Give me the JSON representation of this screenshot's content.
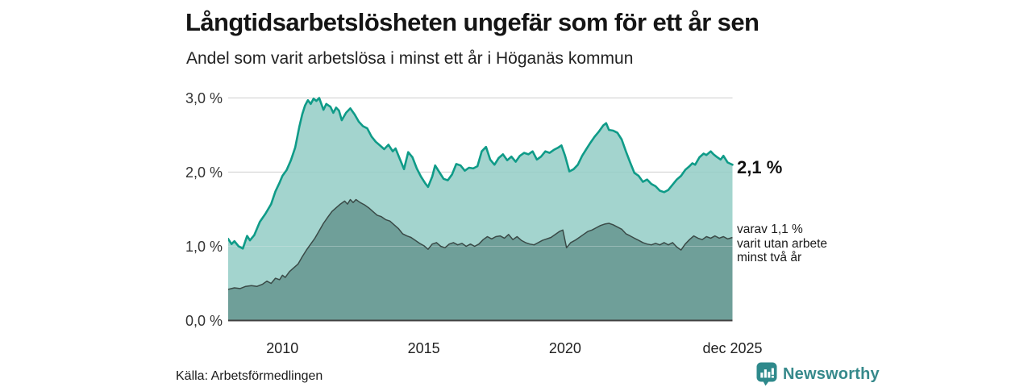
{
  "header": {
    "title": "Långtidsarbetslösheten ungefär som för ett år sen",
    "subtitle": "Andel som varit arbetslösa i minst ett år i Höganäs kommun"
  },
  "footer": {
    "source": "Källa: Arbetsförmedlingen",
    "brand": "Newsworthy"
  },
  "colors": {
    "accent_line": "#0f9b88",
    "accent_fill": "#93cdc5",
    "dark_line": "#3a4a47",
    "dark_fill": "#6f9f99",
    "grid": "#d6d6d6",
    "axis": "#3f3f3f",
    "brand_teal": "#2e898b",
    "text": "#1b1b1b"
  },
  "chart_data": {
    "type": "area",
    "title": "Långtidsarbetslösheten ungefär som för ett år sen",
    "subtitle": "Andel som varit arbetslösa i minst ett år i Höganäs kommun",
    "xlabel": "",
    "ylabel": "",
    "ylim": [
      0,
      3.0
    ],
    "xlim": [
      2008.08,
      2025.92
    ],
    "grid": "horizontal",
    "legend": "none",
    "end_label": "2,1 %",
    "annotation": {
      "lines": [
        "varav 1,1 %",
        "varit utan arbete",
        "minst två år"
      ]
    },
    "yticks": [
      {
        "label": "3,0 %",
        "value": 3
      },
      {
        "label": "2,0 %",
        "value": 2
      },
      {
        "label": "1,0 %",
        "value": 1
      },
      {
        "label": "0,0 %",
        "value": 0
      }
    ],
    "xticks": [
      {
        "label": "2010",
        "year": 2010
      },
      {
        "label": "2015",
        "year": 2015
      },
      {
        "label": "2020",
        "year": 2020
      },
      {
        "label": "dec 2025",
        "year": 2025.92
      }
    ],
    "series": [
      {
        "name": "Arbetslösa minst ett år (%)",
        "role": "upper",
        "last_value": 2.1,
        "points": [
          [
            2008.08,
            1.1
          ],
          [
            2008.2,
            1.03
          ],
          [
            2008.3,
            1.07
          ],
          [
            2008.45,
            1.0
          ],
          [
            2008.6,
            0.97
          ],
          [
            2008.75,
            1.14
          ],
          [
            2008.85,
            1.08
          ],
          [
            2009.0,
            1.15
          ],
          [
            2009.2,
            1.33
          ],
          [
            2009.4,
            1.44
          ],
          [
            2009.6,
            1.57
          ],
          [
            2009.75,
            1.74
          ],
          [
            2009.9,
            1.86
          ],
          [
            2010.0,
            1.95
          ],
          [
            2010.15,
            2.03
          ],
          [
            2010.3,
            2.16
          ],
          [
            2010.45,
            2.33
          ],
          [
            2010.6,
            2.62
          ],
          [
            2010.7,
            2.78
          ],
          [
            2010.8,
            2.9
          ],
          [
            2010.9,
            2.97
          ],
          [
            2011.0,
            2.92
          ],
          [
            2011.1,
            2.99
          ],
          [
            2011.2,
            2.96
          ],
          [
            2011.3,
            3.0
          ],
          [
            2011.45,
            2.84
          ],
          [
            2011.55,
            2.92
          ],
          [
            2011.7,
            2.88
          ],
          [
            2011.8,
            2.8
          ],
          [
            2011.9,
            2.87
          ],
          [
            2012.0,
            2.83
          ],
          [
            2012.1,
            2.7
          ],
          [
            2012.25,
            2.8
          ],
          [
            2012.4,
            2.86
          ],
          [
            2012.55,
            2.78
          ],
          [
            2012.7,
            2.68
          ],
          [
            2012.85,
            2.62
          ],
          [
            2013.0,
            2.59
          ],
          [
            2013.15,
            2.48
          ],
          [
            2013.3,
            2.41
          ],
          [
            2013.45,
            2.36
          ],
          [
            2013.6,
            2.31
          ],
          [
            2013.75,
            2.37
          ],
          [
            2013.9,
            2.28
          ],
          [
            2014.0,
            2.32
          ],
          [
            2014.15,
            2.18
          ],
          [
            2014.3,
            2.04
          ],
          [
            2014.45,
            2.27
          ],
          [
            2014.6,
            2.2
          ],
          [
            2014.75,
            2.05
          ],
          [
            2014.9,
            1.94
          ],
          [
            2015.05,
            1.85
          ],
          [
            2015.15,
            1.8
          ],
          [
            2015.3,
            1.94
          ],
          [
            2015.4,
            2.09
          ],
          [
            2015.55,
            2.0
          ],
          [
            2015.7,
            1.91
          ],
          [
            2015.85,
            1.89
          ],
          [
            2016.0,
            1.97
          ],
          [
            2016.15,
            2.11
          ],
          [
            2016.3,
            2.09
          ],
          [
            2016.45,
            2.02
          ],
          [
            2016.6,
            2.06
          ],
          [
            2016.75,
            2.05
          ],
          [
            2016.9,
            2.08
          ],
          [
            2017.05,
            2.28
          ],
          [
            2017.2,
            2.34
          ],
          [
            2017.35,
            2.17
          ],
          [
            2017.5,
            2.1
          ],
          [
            2017.65,
            2.19
          ],
          [
            2017.8,
            2.24
          ],
          [
            2017.95,
            2.16
          ],
          [
            2018.1,
            2.21
          ],
          [
            2018.25,
            2.14
          ],
          [
            2018.4,
            2.22
          ],
          [
            2018.55,
            2.26
          ],
          [
            2018.7,
            2.24
          ],
          [
            2018.85,
            2.28
          ],
          [
            2019.0,
            2.17
          ],
          [
            2019.15,
            2.21
          ],
          [
            2019.3,
            2.28
          ],
          [
            2019.45,
            2.26
          ],
          [
            2019.6,
            2.3
          ],
          [
            2019.75,
            2.33
          ],
          [
            2019.87,
            2.36
          ],
          [
            2020.0,
            2.22
          ],
          [
            2020.15,
            2.01
          ],
          [
            2020.3,
            2.04
          ],
          [
            2020.45,
            2.1
          ],
          [
            2020.6,
            2.22
          ],
          [
            2020.75,
            2.31
          ],
          [
            2020.9,
            2.4
          ],
          [
            2021.05,
            2.48
          ],
          [
            2021.2,
            2.55
          ],
          [
            2021.35,
            2.63
          ],
          [
            2021.45,
            2.66
          ],
          [
            2021.55,
            2.57
          ],
          [
            2021.7,
            2.56
          ],
          [
            2021.85,
            2.53
          ],
          [
            2022.0,
            2.44
          ],
          [
            2022.15,
            2.28
          ],
          [
            2022.3,
            2.13
          ],
          [
            2022.45,
            1.99
          ],
          [
            2022.6,
            1.95
          ],
          [
            2022.75,
            1.87
          ],
          [
            2022.9,
            1.9
          ],
          [
            2023.05,
            1.84
          ],
          [
            2023.2,
            1.81
          ],
          [
            2023.35,
            1.75
          ],
          [
            2023.5,
            1.73
          ],
          [
            2023.65,
            1.76
          ],
          [
            2023.8,
            1.83
          ],
          [
            2023.95,
            1.9
          ],
          [
            2024.1,
            1.95
          ],
          [
            2024.25,
            2.03
          ],
          [
            2024.4,
            2.08
          ],
          [
            2024.5,
            2.12
          ],
          [
            2024.6,
            2.1
          ],
          [
            2024.75,
            2.2
          ],
          [
            2024.9,
            2.25
          ],
          [
            2025.0,
            2.23
          ],
          [
            2025.15,
            2.28
          ],
          [
            2025.25,
            2.24
          ],
          [
            2025.35,
            2.21
          ],
          [
            2025.5,
            2.17
          ],
          [
            2025.6,
            2.22
          ],
          [
            2025.75,
            2.13
          ],
          [
            2025.92,
            2.1
          ]
        ]
      },
      {
        "name": "Varav utan arbete minst två år (%)",
        "role": "lower",
        "last_value": 1.1,
        "points": [
          [
            2008.08,
            0.42
          ],
          [
            2008.3,
            0.44
          ],
          [
            2008.5,
            0.43
          ],
          [
            2008.7,
            0.46
          ],
          [
            2008.9,
            0.47
          ],
          [
            2009.1,
            0.46
          ],
          [
            2009.3,
            0.49
          ],
          [
            2009.45,
            0.53
          ],
          [
            2009.6,
            0.5
          ],
          [
            2009.75,
            0.57
          ],
          [
            2009.9,
            0.55
          ],
          [
            2010.0,
            0.61
          ],
          [
            2010.1,
            0.58
          ],
          [
            2010.25,
            0.66
          ],
          [
            2010.4,
            0.71
          ],
          [
            2010.55,
            0.76
          ],
          [
            2010.7,
            0.86
          ],
          [
            2010.85,
            0.95
          ],
          [
            2011.0,
            1.03
          ],
          [
            2011.15,
            1.11
          ],
          [
            2011.3,
            1.21
          ],
          [
            2011.45,
            1.31
          ],
          [
            2011.6,
            1.39
          ],
          [
            2011.75,
            1.47
          ],
          [
            2011.9,
            1.52
          ],
          [
            2012.05,
            1.57
          ],
          [
            2012.2,
            1.61
          ],
          [
            2012.3,
            1.57
          ],
          [
            2012.4,
            1.63
          ],
          [
            2012.5,
            1.59
          ],
          [
            2012.6,
            1.63
          ],
          [
            2012.75,
            1.59
          ],
          [
            2012.9,
            1.56
          ],
          [
            2013.05,
            1.52
          ],
          [
            2013.2,
            1.47
          ],
          [
            2013.35,
            1.42
          ],
          [
            2013.5,
            1.4
          ],
          [
            2013.65,
            1.36
          ],
          [
            2013.8,
            1.34
          ],
          [
            2013.95,
            1.29
          ],
          [
            2014.1,
            1.24
          ],
          [
            2014.25,
            1.17
          ],
          [
            2014.4,
            1.14
          ],
          [
            2014.55,
            1.12
          ],
          [
            2014.7,
            1.08
          ],
          [
            2014.85,
            1.04
          ],
          [
            2015.0,
            1.01
          ],
          [
            2015.15,
            0.96
          ],
          [
            2015.3,
            1.03
          ],
          [
            2015.45,
            1.05
          ],
          [
            2015.6,
            1.0
          ],
          [
            2015.75,
            0.98
          ],
          [
            2015.9,
            1.03
          ],
          [
            2016.05,
            1.05
          ],
          [
            2016.2,
            1.02
          ],
          [
            2016.35,
            1.04
          ],
          [
            2016.5,
            1.0
          ],
          [
            2016.65,
            1.03
          ],
          [
            2016.8,
            1.0
          ],
          [
            2016.95,
            1.03
          ],
          [
            2017.1,
            1.09
          ],
          [
            2017.25,
            1.13
          ],
          [
            2017.4,
            1.1
          ],
          [
            2017.55,
            1.13
          ],
          [
            2017.7,
            1.14
          ],
          [
            2017.85,
            1.11
          ],
          [
            2018.0,
            1.16
          ],
          [
            2018.15,
            1.09
          ],
          [
            2018.3,
            1.13
          ],
          [
            2018.45,
            1.08
          ],
          [
            2018.6,
            1.05
          ],
          [
            2018.75,
            1.03
          ],
          [
            2018.9,
            1.02
          ],
          [
            2019.05,
            1.05
          ],
          [
            2019.2,
            1.08
          ],
          [
            2019.35,
            1.1
          ],
          [
            2019.5,
            1.12
          ],
          [
            2019.65,
            1.16
          ],
          [
            2019.8,
            1.2
          ],
          [
            2019.92,
            1.22
          ],
          [
            2020.05,
            0.98
          ],
          [
            2020.2,
            1.05
          ],
          [
            2020.35,
            1.08
          ],
          [
            2020.5,
            1.12
          ],
          [
            2020.65,
            1.16
          ],
          [
            2020.8,
            1.2
          ],
          [
            2020.95,
            1.22
          ],
          [
            2021.1,
            1.25
          ],
          [
            2021.25,
            1.28
          ],
          [
            2021.4,
            1.3
          ],
          [
            2021.55,
            1.31
          ],
          [
            2021.7,
            1.29
          ],
          [
            2021.85,
            1.26
          ],
          [
            2022.0,
            1.23
          ],
          [
            2022.15,
            1.17
          ],
          [
            2022.3,
            1.14
          ],
          [
            2022.45,
            1.11
          ],
          [
            2022.6,
            1.08
          ],
          [
            2022.75,
            1.05
          ],
          [
            2022.9,
            1.03
          ],
          [
            2023.05,
            1.02
          ],
          [
            2023.2,
            1.04
          ],
          [
            2023.35,
            1.02
          ],
          [
            2023.5,
            1.05
          ],
          [
            2023.65,
            1.02
          ],
          [
            2023.8,
            1.05
          ],
          [
            2023.95,
            0.99
          ],
          [
            2024.1,
            0.95
          ],
          [
            2024.25,
            1.03
          ],
          [
            2024.4,
            1.09
          ],
          [
            2024.55,
            1.14
          ],
          [
            2024.7,
            1.11
          ],
          [
            2024.85,
            1.09
          ],
          [
            2025.0,
            1.13
          ],
          [
            2025.15,
            1.11
          ],
          [
            2025.3,
            1.14
          ],
          [
            2025.45,
            1.11
          ],
          [
            2025.6,
            1.13
          ],
          [
            2025.75,
            1.1
          ],
          [
            2025.92,
            1.12
          ]
        ]
      }
    ]
  }
}
